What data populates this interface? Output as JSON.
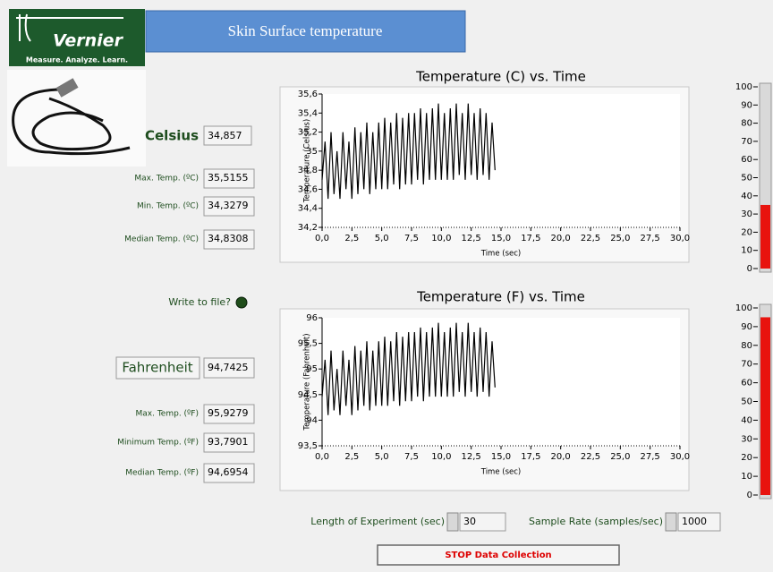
{
  "header": {
    "logo_name": "Vernier",
    "logo_tagline": "Measure. Analyze. Learn.",
    "title": "Skin Surface temperature"
  },
  "celsius": {
    "label": "Celsius",
    "value": "34,857",
    "stats": [
      {
        "label": "Max. Temp. (ºC)",
        "value": "35,5155"
      },
      {
        "label": "Min. Temp. (ºC)",
        "value": "34,3279"
      },
      {
        "label": "Median Temp. (ºC)",
        "value": "34,8308"
      }
    ]
  },
  "write_to_file": "Write to file?",
  "fahrenheit": {
    "label": "Fahrenheit",
    "value": "94,7425",
    "stats": [
      {
        "label": "Max. Temp. (ºF)",
        "value": "95,9279"
      },
      {
        "label": "Minimum Temp. (ºF)",
        "value": "93,7901"
      },
      {
        "label": "Median Temp. (ºF)",
        "value": "94,6954"
      }
    ]
  },
  "chart_data": [
    {
      "type": "line",
      "title": "Temperature (C) vs. Time",
      "x_label": "Time (sec)",
      "y_label": "Temperature (Celsius)",
      "color": "#000000",
      "x": [
        0,
        0.25,
        0.5,
        0.75,
        1,
        1.25,
        1.5,
        1.75,
        2,
        2.25,
        2.5,
        2.75,
        3,
        3.25,
        3.5,
        3.75,
        4,
        4.25,
        4.5,
        4.75,
        5,
        5.25,
        5.5,
        5.75,
        6,
        6.25,
        6.5,
        6.75,
        7,
        7.25,
        7.5,
        7.75,
        8,
        8.25,
        8.5,
        8.75,
        9,
        9.25,
        9.5,
        9.75,
        10,
        10.25,
        10.5,
        10.75,
        11,
        11.25,
        11.5,
        11.75,
        12,
        12.25,
        12.5,
        12.75,
        13,
        13.25,
        13.5,
        13.75,
        14,
        14.25,
        14.5
      ],
      "values": [
        34.7,
        35.1,
        34.5,
        35.2,
        34.55,
        35.0,
        34.5,
        35.2,
        34.6,
        35.1,
        34.5,
        35.25,
        34.55,
        35.2,
        34.6,
        35.3,
        34.55,
        35.2,
        34.6,
        35.3,
        34.6,
        35.35,
        34.6,
        35.3,
        34.65,
        35.4,
        34.6,
        35.35,
        34.65,
        35.4,
        34.65,
        35.4,
        34.7,
        35.45,
        34.65,
        35.4,
        34.7,
        35.45,
        34.7,
        35.5,
        34.7,
        35.4,
        34.7,
        35.45,
        34.7,
        35.5,
        34.75,
        35.4,
        34.7,
        35.5,
        34.75,
        35.4,
        34.7,
        35.45,
        34.75,
        35.4,
        34.7,
        35.3,
        34.8
      ],
      "xlim": [
        0,
        30
      ],
      "ylim": [
        34.2,
        35.6
      ],
      "xticks": [
        {
          "value": 0,
          "label": "0,0"
        },
        {
          "value": 2.5,
          "label": "2,5"
        },
        {
          "value": 5,
          "label": "5,0"
        },
        {
          "value": 7.5,
          "label": "7,5"
        },
        {
          "value": 10,
          "label": "10,0"
        },
        {
          "value": 12.5,
          "label": "12,5"
        },
        {
          "value": 15,
          "label": "15,0"
        },
        {
          "value": 17.5,
          "label": "17,5"
        },
        {
          "value": 20,
          "label": "20,0"
        },
        {
          "value": 22.5,
          "label": "22,5"
        },
        {
          "value": 25,
          "label": "25,0"
        },
        {
          "value": 27.5,
          "label": "27,5"
        },
        {
          "value": 30,
          "label": "30,0"
        }
      ],
      "yticks": [
        {
          "value": 34.2,
          "label": "34,2"
        },
        {
          "value": 34.4,
          "label": "34,4"
        },
        {
          "value": 34.6,
          "label": "34,6"
        },
        {
          "value": 34.8,
          "label": "34,8"
        },
        35,
        {
          "value": 35.2,
          "label": "35,2"
        },
        {
          "value": 35.4,
          "label": "35,4"
        },
        {
          "value": 35.6,
          "label": "35,6"
        }
      ]
    },
    {
      "type": "line",
      "title": "Temperature (F) vs. Time",
      "x_label": "Time (sec)",
      "y_label": "Temperature (Fahrenheit)",
      "color": "#000000",
      "x": [
        0,
        0.25,
        0.5,
        0.75,
        1,
        1.25,
        1.5,
        1.75,
        2,
        2.25,
        2.5,
        2.75,
        3,
        3.25,
        3.5,
        3.75,
        4,
        4.25,
        4.5,
        4.75,
        5,
        5.25,
        5.5,
        5.75,
        6,
        6.25,
        6.5,
        6.75,
        7,
        7.25,
        7.5,
        7.75,
        8,
        8.25,
        8.5,
        8.75,
        9,
        9.25,
        9.5,
        9.75,
        10,
        10.25,
        10.5,
        10.75,
        11,
        11.25,
        11.5,
        11.75,
        12,
        12.25,
        12.5,
        12.75,
        13,
        13.25,
        13.5,
        13.75,
        14,
        14.25,
        14.5
      ],
      "values": [
        94.46,
        95.18,
        94.1,
        95.36,
        94.19,
        95.0,
        94.1,
        95.36,
        94.28,
        95.18,
        94.1,
        95.45,
        94.19,
        95.36,
        94.28,
        95.54,
        94.19,
        95.36,
        94.28,
        95.54,
        94.28,
        95.63,
        94.28,
        95.54,
        94.37,
        95.72,
        94.28,
        95.63,
        94.37,
        95.72,
        94.37,
        95.72,
        94.46,
        95.81,
        94.37,
        95.72,
        94.46,
        95.81,
        94.46,
        95.9,
        94.46,
        95.72,
        94.46,
        95.81,
        94.46,
        95.9,
        94.55,
        95.72,
        94.46,
        95.9,
        94.55,
        95.72,
        94.46,
        95.81,
        94.55,
        95.72,
        94.46,
        95.54,
        94.64
      ],
      "xlim": [
        0,
        30
      ],
      "ylim": [
        93.5,
        96
      ],
      "xticks": [
        {
          "value": 0,
          "label": "0,0"
        },
        {
          "value": 2.5,
          "label": "2,5"
        },
        {
          "value": 5,
          "label": "5,0"
        },
        {
          "value": 7.5,
          "label": "7,5"
        },
        {
          "value": 10,
          "label": "10,0"
        },
        {
          "value": 12.5,
          "label": "12,5"
        },
        {
          "value": 15,
          "label": "15,0"
        },
        {
          "value": 17.5,
          "label": "17,5"
        },
        {
          "value": 20,
          "label": "20,0"
        },
        {
          "value": 22.5,
          "label": "22,5"
        },
        {
          "value": 25,
          "label": "25,0"
        },
        {
          "value": 27.5,
          "label": "27,5"
        },
        {
          "value": 30,
          "label": "30,0"
        }
      ],
      "yticks": [
        {
          "value": 93.5,
          "label": "93,5"
        },
        94,
        {
          "value": 94.5,
          "label": "94,5"
        },
        95,
        {
          "value": 95.5,
          "label": "95,5"
        },
        96
      ]
    }
  ],
  "gauges": [
    {
      "value": 35,
      "color": "#e8130e",
      "ylim": [
        0,
        100
      ],
      "yticks": [
        0,
        10,
        20,
        30,
        40,
        50,
        60,
        70,
        80,
        90,
        100
      ]
    },
    {
      "value": 95,
      "color": "#e8130e",
      "ylim": [
        0,
        100
      ],
      "yticks": [
        0,
        10,
        20,
        30,
        40,
        50,
        60,
        70,
        80,
        90,
        100
      ]
    }
  ],
  "controls": {
    "length_label": "Length of Experiment (sec)",
    "length_value": "30",
    "rate_label": "Sample Rate (samples/sec)",
    "rate_value": "1000",
    "stop_button": "STOP Data Collection"
  }
}
